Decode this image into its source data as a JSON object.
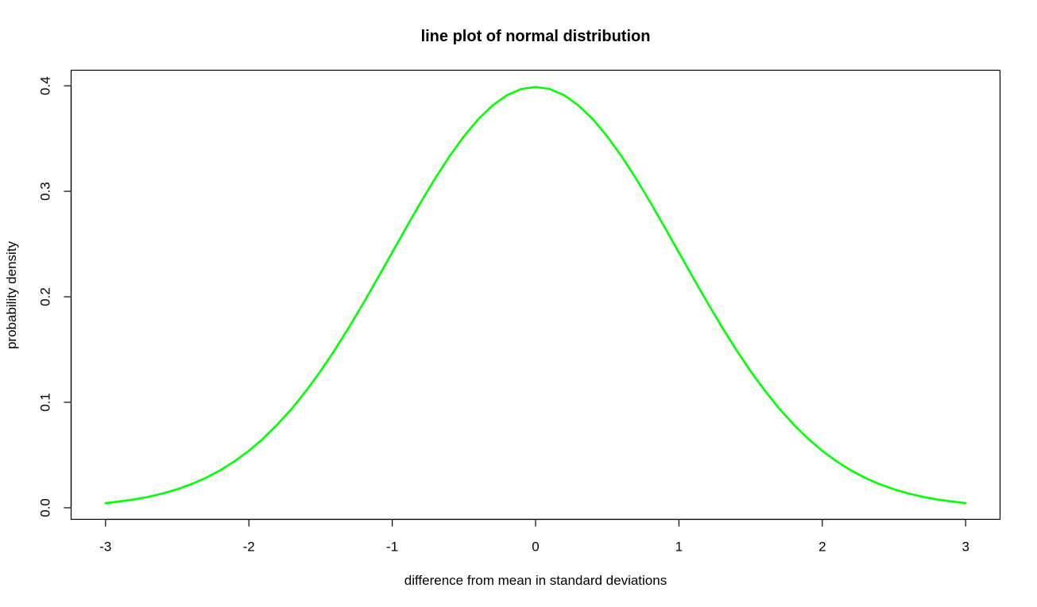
{
  "chart_data": {
    "type": "line",
    "title": "line plot of normal distribution",
    "xlabel": "difference from mean in standard deviations",
    "ylabel": "probability density",
    "xlim": [
      -3.24,
      3.24
    ],
    "ylim": [
      -0.01096,
      0.41478
    ],
    "x_ticks": [
      -3,
      -2,
      -1,
      0,
      1,
      2,
      3
    ],
    "x_tick_labels": [
      "-3",
      "-2",
      "-1",
      "0",
      "1",
      "2",
      "3"
    ],
    "y_ticks": [
      0.0,
      0.1,
      0.2,
      0.3,
      0.4
    ],
    "y_tick_labels": [
      "0.0",
      "0.1",
      "0.2",
      "0.3",
      "0.4"
    ],
    "grid": false,
    "series": [
      {
        "color": "#00ff00",
        "x": [
          -3,
          -2.9,
          -2.8,
          -2.7,
          -2.6,
          -2.5,
          -2.4,
          -2.3,
          -2.2,
          -2.1,
          -2,
          -1.9,
          -1.8,
          -1.7,
          -1.6,
          -1.5,
          -1.4,
          -1.3,
          -1.2,
          -1.1,
          -1,
          -0.9,
          -0.8,
          -0.7,
          -0.6,
          -0.5,
          -0.4,
          -0.3,
          -0.2,
          -0.1,
          0,
          0.1,
          0.2,
          0.3,
          0.4,
          0.5,
          0.6,
          0.7,
          0.8,
          0.9,
          1,
          1.1,
          1.2,
          1.3,
          1.4,
          1.5,
          1.6,
          1.7,
          1.8,
          1.9,
          2,
          2.1,
          2.2,
          2.3,
          2.4,
          2.5,
          2.6,
          2.7,
          2.8,
          2.9,
          3
        ],
        "y": [
          0.0044,
          0.006,
          0.0079,
          0.0104,
          0.0136,
          0.0175,
          0.0224,
          0.0283,
          0.0355,
          0.044,
          0.054,
          0.0656,
          0.079,
          0.094,
          0.1109,
          0.1295,
          0.1497,
          0.1714,
          0.1942,
          0.2179,
          0.242,
          0.2661,
          0.2897,
          0.3123,
          0.3332,
          0.3521,
          0.3683,
          0.3814,
          0.391,
          0.397,
          0.3989,
          0.397,
          0.391,
          0.3814,
          0.3683,
          0.3521,
          0.3332,
          0.3123,
          0.2897,
          0.2661,
          0.242,
          0.2179,
          0.1942,
          0.1714,
          0.1497,
          0.1295,
          0.1109,
          0.094,
          0.079,
          0.0656,
          0.054,
          0.044,
          0.0355,
          0.0283,
          0.0224,
          0.0175,
          0.0136,
          0.0104,
          0.0079,
          0.006,
          0.0044
        ]
      }
    ]
  }
}
